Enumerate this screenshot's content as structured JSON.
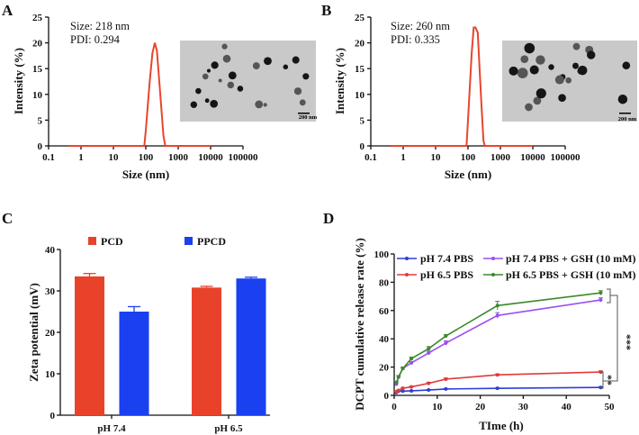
{
  "panel_labels": [
    "A",
    "B",
    "C",
    "D"
  ],
  "chart_data": [
    {
      "panel": "A",
      "type": "line",
      "xlabel": "Size (nm)",
      "ylabel": "Intensity (%)",
      "xscale": "log",
      "xticks": [
        "0.1",
        "1",
        "10",
        "100",
        "1000",
        "10000",
        "100000"
      ],
      "yticks": [
        "0",
        "5",
        "10",
        "15",
        "20",
        "25"
      ],
      "xlim": [
        0.1,
        100000
      ],
      "ylim": [
        0,
        25
      ],
      "annotations": [
        "Size: 218 nm",
        "PDI: 0.294"
      ],
      "inset": {
        "type": "TEM image",
        "scale_bar": "200 nm"
      },
      "color": "#e8452c",
      "x": [
        0.4,
        90,
        100,
        130,
        160,
        190,
        220,
        280,
        350,
        400,
        1000,
        10000
      ],
      "y": [
        0,
        0,
        3,
        12,
        18,
        20,
        18.5,
        10,
        2,
        0,
        0,
        0
      ]
    },
    {
      "panel": "B",
      "type": "line",
      "xlabel": "Size (nm)",
      "ylabel": "Intensity (%)",
      "xscale": "log",
      "xticks": [
        "0.1",
        "1",
        "10",
        "100",
        "1000",
        "10000",
        "100000"
      ],
      "yticks": [
        "0",
        "5",
        "10",
        "15",
        "20",
        "25"
      ],
      "xlim": [
        0.1,
        100000
      ],
      "ylim": [
        0,
        25
      ],
      "annotations": [
        "Size: 260 nm",
        "PDI: 0.335"
      ],
      "inset": {
        "type": "TEM image",
        "scale_bar": "200 nm"
      },
      "color": "#e8452c",
      "x": [
        0.4,
        90,
        100,
        130,
        150,
        170,
        200,
        250,
        300,
        330,
        10000
      ],
      "y": [
        0,
        0,
        5,
        18,
        23,
        23,
        22,
        10,
        1,
        0,
        0
      ]
    },
    {
      "panel": "C",
      "type": "bar",
      "ylabel": "Zeta potential (mV)",
      "categories": [
        "pH 7.4",
        "pH 6.5"
      ],
      "yticks": [
        "0",
        "10",
        "20",
        "30",
        "40"
      ],
      "ylim": [
        0,
        40
      ],
      "legend": "top",
      "series": [
        {
          "name": "PCD",
          "color": "#e8432a",
          "values": [
            33.5,
            30.8
          ],
          "errors": [
            0.7,
            0.3
          ]
        },
        {
          "name": "PPCD",
          "color": "#1a40f0",
          "values": [
            25.0,
            33.0
          ],
          "errors": [
            1.2,
            0.3
          ]
        }
      ]
    },
    {
      "panel": "D",
      "type": "line",
      "xlabel": "TIme (h)",
      "ylabel": "DCPT cumulative release rate (%)",
      "xticks": [
        "0",
        "10",
        "20",
        "30",
        "40",
        "50"
      ],
      "yticks": [
        "0",
        "20",
        "40",
        "60",
        "80",
        "100"
      ],
      "xlim": [
        0,
        50
      ],
      "ylim": [
        0,
        100
      ],
      "legend": "top",
      "x": [
        0.5,
        1,
        2,
        4,
        8,
        12,
        24,
        48
      ],
      "series": [
        {
          "name": "pH 7.4 PBS",
          "color": "#2a3fd8",
          "values": [
            2,
            3,
            3,
            3.2,
            3.8,
            4.5,
            5,
            5.6
          ],
          "errors": [
            0.5,
            0.3,
            0.3,
            0.3,
            0.3,
            0.3,
            0.3,
            0.4
          ]
        },
        {
          "name": "pH 6.5 PBS",
          "color": "#e23a3a",
          "values": [
            2.5,
            3.5,
            5,
            6,
            8.5,
            11.5,
            14.5,
            16.5
          ],
          "errors": [
            0.4,
            0.4,
            0.5,
            0.5,
            0.8,
            0.8,
            0.6,
            0.8
          ]
        },
        {
          "name": "pH 7.4 PBS + GSH (10 mM)",
          "color": "#9b4ff0",
          "values": [
            8,
            13,
            19,
            23,
            30,
            37,
            56.5,
            67.5
          ],
          "errors": [
            1,
            1,
            1,
            1,
            1.2,
            1.5,
            2,
            1.5
          ]
        },
        {
          "name": "pH 6.5 PBS + GSH (10 mM)",
          "color": "#3a8a2a",
          "values": [
            9,
            13,
            19,
            26,
            33,
            42,
            63.5,
            72.5
          ],
          "errors": [
            1,
            1,
            1,
            1,
            1.5,
            1,
            3,
            1.5
          ]
        }
      ],
      "significance": [
        "***",
        "**"
      ]
    }
  ]
}
